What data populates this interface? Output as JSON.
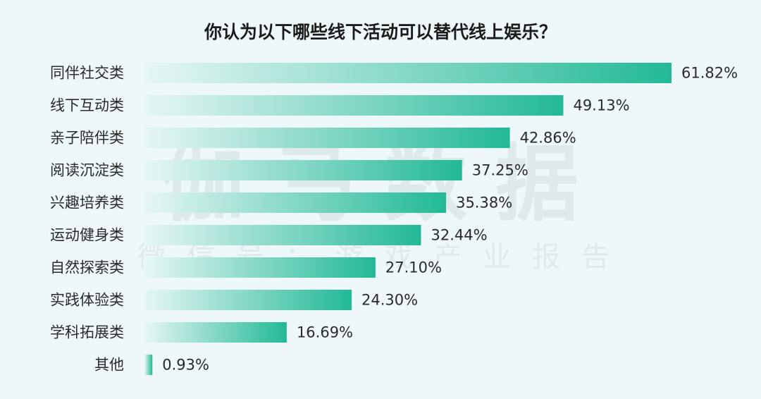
{
  "chart_data": {
    "type": "bar",
    "orientation": "horizontal",
    "title": "你认为以下哪些线下活动可以替代线上娱乐？",
    "categories": [
      "同伴社交类",
      "线下互动类",
      "亲子陪伴类",
      "阅读沉淀类",
      "兴趣培养类",
      "运动健身类",
      "自然探索类",
      "实践体验类",
      "学科拓展类",
      "其他"
    ],
    "values": [
      61.82,
      49.13,
      42.86,
      37.25,
      35.38,
      32.44,
      27.1,
      24.3,
      16.69,
      0.93
    ],
    "value_labels": [
      "61.82%",
      "49.13%",
      "42.86%",
      "37.25%",
      "35.38%",
      "32.44%",
      "27.10%",
      "24.30%",
      "16.69%",
      "0.93%"
    ],
    "unit": "%",
    "xlim": [
      0,
      61.82
    ],
    "grid": false,
    "legend": "none",
    "bar_gradient": {
      "start": "#e6f6f6",
      "end": "#22b996"
    }
  },
  "watermark": {
    "main": "伽马数据",
    "sub": "微信号：游戏产业报告"
  },
  "colors": {
    "background": "#eef8fa",
    "text": "#2a2a2a",
    "bar_accent": "#22b996"
  }
}
